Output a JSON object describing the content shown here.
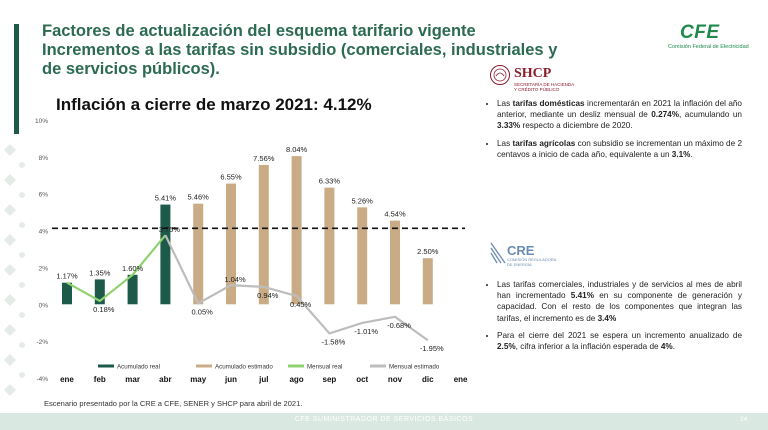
{
  "slide": {
    "title_lines": [
      "Factores de actualización del esquema tarifario vigente",
      "Incrementos a las tarifas sin subsidio (comerciales, industriales y",
      "de servicios públicos)."
    ],
    "logo_text": "CFE",
    "logo_subtitle": "Comisión Federal de Electricidad",
    "footnote": "Escenario presentado por la CRE a CFE, SENER y SHCP para abril de 2021.",
    "footer": "CFE SUMINISTRADOR DE SERVICIOS BÁSICOS",
    "page_number": "24"
  },
  "colors": {
    "title_green": "#2c6a52",
    "acumulado_real": "#1e5a4a",
    "acumulado_estimado": "#c9ac86",
    "mensual_real": "#8ed36f",
    "mensual_estimado": "#bdbdbd",
    "shcp_red": "#8b1c2c",
    "cre_blue": "#6a8cb2"
  },
  "shcp": {
    "name": "SHCP",
    "subtitle": "SECRETARÍA DE HACIENDA Y CRÉDITO PÚBLICO"
  },
  "cre": {
    "name": "CRE",
    "subtitle": "COMISIÓN REGULADORA DE ENERGÍA"
  },
  "bullets_top": [
    {
      "parts": [
        [
          "Las ",
          false
        ],
        [
          "tarifas domésticas",
          true
        ],
        [
          " incrementarán en 2021 la inflación del año anterior, mediante un desliz mensual de ",
          false
        ],
        [
          "0.274%",
          true
        ],
        [
          ", acumulando un ",
          false
        ],
        [
          "3.33%",
          true
        ],
        [
          " respecto a diciembre de 2020.",
          false
        ]
      ]
    },
    {
      "parts": [
        [
          "Las ",
          false
        ],
        [
          "tarifas agrícolas",
          true
        ],
        [
          " con subsidio se incrementan un máximo de 2 centavos a inicio de cada año, equivalente a un ",
          false
        ],
        [
          "3.1%",
          true
        ],
        [
          ".",
          false
        ]
      ]
    }
  ],
  "bullets_bottom": [
    {
      "parts": [
        [
          "Las tarifas comerciales, industriales y de servicios al mes de abril han incrementado ",
          false
        ],
        [
          "5.41%",
          true
        ],
        [
          " en su componente de generación y capacidad. Con el resto de los componentes que integran las tarifas, el incremento es de ",
          false
        ],
        [
          "3.4%",
          true
        ]
      ]
    },
    {
      "parts": [
        [
          "Para el cierre del 2021 se espera un incremento anualizado de ",
          false
        ],
        [
          "2.5%",
          true
        ],
        [
          ", cifra inferior a la inflación esperada de ",
          false
        ],
        [
          "4%",
          true
        ],
        [
          ".",
          false
        ]
      ]
    }
  ],
  "chart_data": {
    "type": "bar",
    "title": "Inflación a cierre de marzo 2021: 4.12%",
    "categories": [
      "ene",
      "feb",
      "mar",
      "abr",
      "may",
      "jun",
      "jul",
      "ago",
      "sep",
      "oct",
      "nov",
      "dic",
      "ene"
    ],
    "y_ticks": [
      "10%",
      "8%",
      "6%",
      "4%",
      "2%",
      "0%",
      "-2%",
      "-4%"
    ],
    "ylim": [
      -4,
      10
    ],
    "inflation_reference_line": 4.12,
    "series": [
      {
        "name": "Acumulado real",
        "kind": "bar",
        "values": [
          1.17,
          1.35,
          1.6,
          5.41,
          null,
          null,
          null,
          null,
          null,
          null,
          null,
          null,
          null
        ],
        "labels": [
          "1.17%",
          "1.35%",
          "1.60%",
          "5.41%",
          "",
          "",
          "",
          "",
          "",
          "",
          "",
          "",
          ""
        ]
      },
      {
        "name": "Acumulado estimado",
        "kind": "bar",
        "values": [
          null,
          null,
          null,
          null,
          5.46,
          6.55,
          7.56,
          8.04,
          6.33,
          5.26,
          4.54,
          2.5,
          null
        ],
        "labels": [
          "",
          "",
          "",
          "",
          "5.46%",
          "6.55%",
          "7.56%",
          "8.04%",
          "6.33%",
          "5.26%",
          "4.54%",
          "2.50%",
          ""
        ]
      },
      {
        "name": "Mensual real",
        "kind": "line",
        "values": [
          1.17,
          0.18,
          1.6,
          3.75,
          null,
          null,
          null,
          null,
          null,
          null,
          null,
          null,
          null
        ],
        "labels": [
          "",
          "0.18%",
          "",
          "3.75%",
          "",
          "",
          "",
          "",
          "",
          "",
          "",
          "",
          ""
        ]
      },
      {
        "name": "Mensual estimado",
        "kind": "line",
        "values": [
          null,
          null,
          null,
          3.75,
          0.05,
          1.04,
          0.94,
          0.45,
          -1.58,
          -1.01,
          -0.68,
          -1.95,
          null
        ],
        "labels": [
          "",
          "",
          "",
          "",
          "0.05%",
          "1.04%",
          "0.94%",
          "0.45%",
          "-1.58%",
          "-1.01%",
          "-0.68%",
          "-1.95%",
          ""
        ]
      }
    ],
    "legend_position": "bottom"
  }
}
